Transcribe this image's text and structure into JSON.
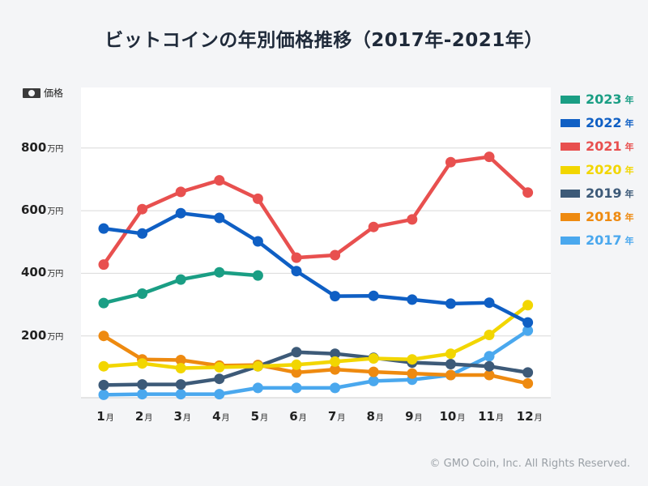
{
  "title": "ビットコインの年別価格推移（2017年‐2021年）",
  "price_label": "価格",
  "copyright": "© GMO Coin, Inc. All Rights Reserved.",
  "x_unit": "月",
  "y_unit": "万円",
  "legend_unit": "年",
  "chart_data": {
    "type": "line",
    "title": "ビットコインの年別価格推移（2017年‐2021年）",
    "xlabel": "月",
    "ylabel": "価格（万円）",
    "categories": [
      "1",
      "2",
      "3",
      "4",
      "5",
      "6",
      "7",
      "8",
      "9",
      "10",
      "11",
      "12"
    ],
    "ylim": [
      -20,
      1000
    ],
    "yticks": [
      200,
      400,
      600,
      800
    ],
    "grid": true,
    "legend_position": "right",
    "series": [
      {
        "name": "2023",
        "color": "#1a9e84",
        "values": [
          305,
          335,
          380,
          403,
          393,
          null,
          null,
          null,
          null,
          null,
          null,
          null
        ]
      },
      {
        "name": "2022",
        "color": "#0f5fc4",
        "values": [
          543,
          527,
          592,
          577,
          502,
          407,
          327,
          328,
          316,
          303,
          306,
          243
        ]
      },
      {
        "name": "2021",
        "color": "#e8504f",
        "values": [
          428,
          605,
          660,
          697,
          638,
          450,
          458,
          548,
          572,
          755,
          772,
          658
        ]
      },
      {
        "name": "2020",
        "color": "#f2d600",
        "values": [
          103,
          112,
          97,
          100,
          103,
          108,
          118,
          128,
          125,
          143,
          203,
          298
        ]
      },
      {
        "name": "2019",
        "color": "#3d5a78",
        "values": [
          43,
          45,
          45,
          63,
          103,
          148,
          143,
          130,
          115,
          110,
          103,
          83
        ]
      },
      {
        "name": "2018",
        "color": "#ee8a10",
        "values": [
          200,
          125,
          123,
          105,
          107,
          83,
          93,
          85,
          80,
          75,
          75,
          48
        ]
      },
      {
        "name": "2017",
        "color": "#4aa8ee",
        "values": [
          12,
          14,
          14,
          14,
          34,
          34,
          34,
          56,
          60,
          75,
          135,
          217
        ]
      }
    ]
  }
}
